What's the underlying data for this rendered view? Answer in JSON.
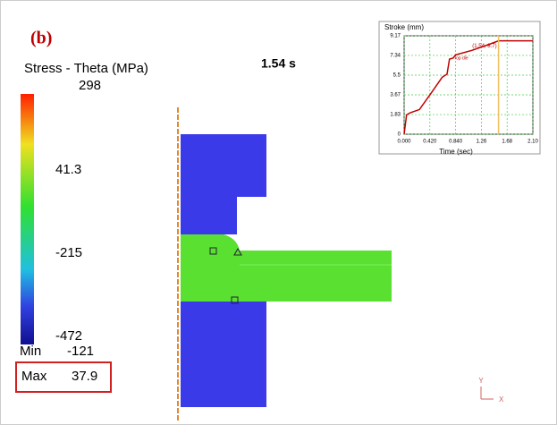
{
  "panel_label": "(b)",
  "time_label": "1.54 s",
  "legend": {
    "title": "Stress - Theta (MPa)",
    "levels": [
      298,
      41.3,
      -215,
      -472
    ],
    "min_label": "Min",
    "min_value": -121,
    "max_label": "Max",
    "max_value": 37.9
  },
  "axes_triad": {
    "y": "Y",
    "x": "X"
  },
  "inset": {
    "type": "line",
    "title": "Stroke (mm)",
    "x_label": "Time (sec)",
    "color": "#c00000",
    "grid": true,
    "x": [
      0,
      0.04,
      0.1,
      0.25,
      0.45,
      0.62,
      0.7,
      0.74,
      0.8,
      0.84,
      1.1,
      1.4,
      1.54,
      1.7,
      2.1
    ],
    "values": [
      0,
      1.8,
      2.0,
      2.3,
      3.9,
      5.3,
      5.6,
      7.0,
      7.1,
      7.4,
      7.8,
      8.4,
      8.7,
      8.7,
      8.7
    ],
    "xlim": [
      0,
      2.1
    ],
    "ylim": [
      0,
      9.17
    ],
    "xticks": [
      {
        "value": 0,
        "label": "0.000"
      },
      {
        "value": 0.42,
        "label": "0.420"
      },
      {
        "value": 0.84,
        "label": "0.840"
      },
      1.26,
      1.68,
      {
        "value": 2.1,
        "label": "2.10"
      }
    ],
    "yticks": [
      0,
      1.83,
      3.67,
      5.5,
      7.34,
      9.17
    ],
    "annotations": [
      "(1.54, 8.7)",
      "Top die"
    ]
  }
}
